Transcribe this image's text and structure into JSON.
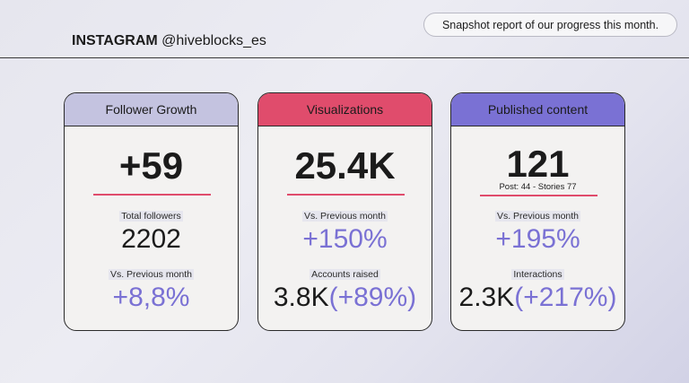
{
  "header": {
    "brand": "INSTAGRAM",
    "handle": "@hiveblocks_es",
    "snapshot": "Snapshot report of our progress this month."
  },
  "cards": [
    {
      "title": "Follower Growth",
      "big": "+59",
      "label1": "Total followers",
      "value1": "2202",
      "label2": "Vs. Previous month",
      "value2": "+8,8%"
    },
    {
      "title": "Visualizations",
      "big": "25.4K",
      "label1": "Vs. Previous month",
      "value1": "+150%",
      "label2": "Accounts raised",
      "value2_main": "3.8K",
      "value2_change": "(+89%)"
    },
    {
      "title": "Published content",
      "big": "121",
      "note": "Post: 44 - Stories 77",
      "label1": "Vs. Previous month",
      "value1": "+195%",
      "label2": "Interactions",
      "value2_main": "2.3K",
      "value2_change": "(+217%)"
    }
  ],
  "colors": {
    "accent_red": "#e04c6c",
    "accent_purple": "#7a71d4",
    "accent_lavender": "#c4c3e0"
  }
}
